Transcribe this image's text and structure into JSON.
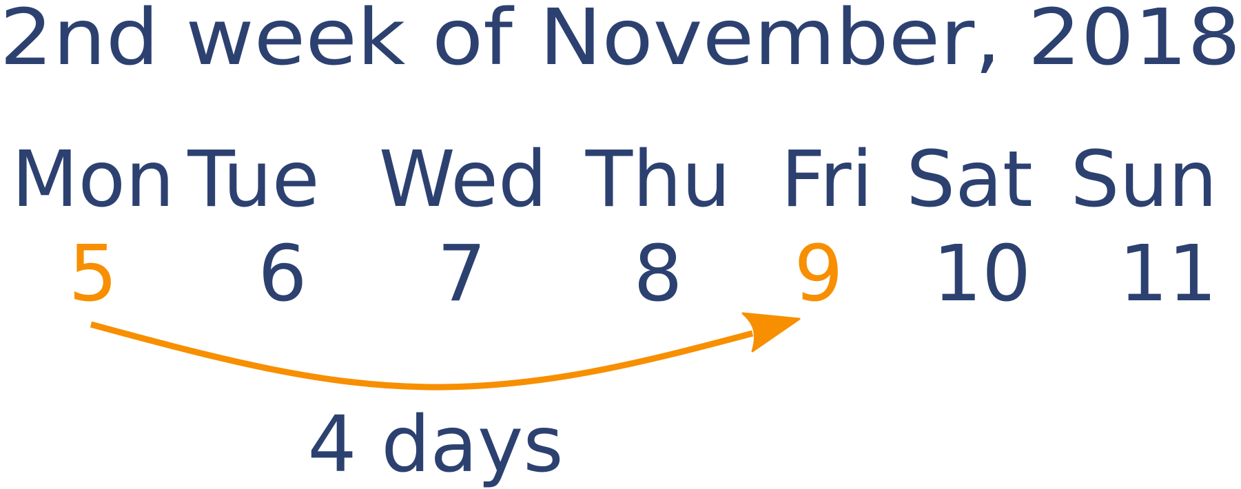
{
  "title": "2nd week of November, 2018",
  "days": [
    {
      "name": "Mon",
      "date": "5",
      "highlight": true
    },
    {
      "name": "Tue",
      "date": "6",
      "highlight": false
    },
    {
      "name": "Wed",
      "date": "7",
      "highlight": false
    },
    {
      "name": "Thu",
      "date": "8",
      "highlight": false
    },
    {
      "name": "Fri",
      "date": "9",
      "highlight": true
    },
    {
      "name": "Sat",
      "date": "10",
      "highlight": false
    },
    {
      "name": "Sun",
      "date": "11",
      "highlight": false
    }
  ],
  "interval": {
    "from": "5",
    "to": "9",
    "label": "4 days"
  },
  "colors": {
    "text": "#2c4170",
    "highlight": "#f78f00",
    "background": "#ffffff"
  }
}
